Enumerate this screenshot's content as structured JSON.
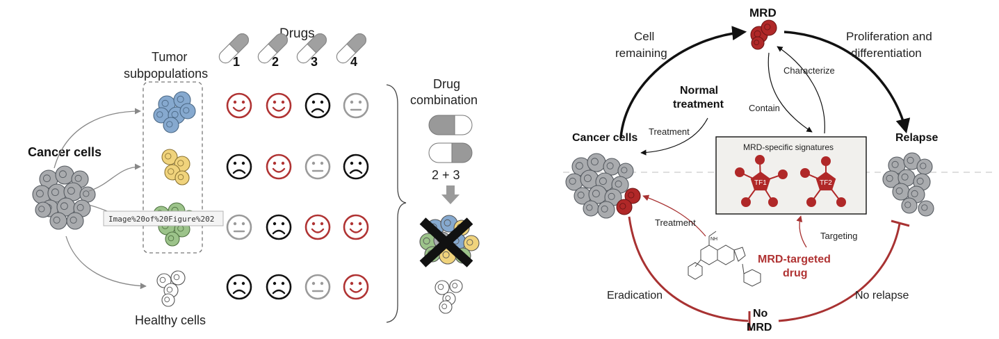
{
  "left_panel": {
    "drugs_title": "Drugs",
    "drug_numbers": [
      "1",
      "2",
      "3",
      "4"
    ],
    "tumor_subpopulations": "Tumor subpopulations",
    "tumor_line1": "Tumor",
    "tumor_line2": "subpopulations",
    "cancer_cells": "Cancer cells",
    "healthy_cells": "Healthy cells",
    "drug_combination_line1": "Drug",
    "drug_combination_line2": "combination",
    "combination_formula": "2 + 3",
    "tooltip": "Image%20of%20Figure%202",
    "response_rows": [
      {
        "population": "blue",
        "responses": [
          "happy",
          "happy",
          "sad",
          "neutral"
        ]
      },
      {
        "population": "yellow",
        "responses": [
          "sad",
          "happy",
          "neutral",
          "sad"
        ]
      },
      {
        "population": "green",
        "responses": [
          "neutral",
          "sad",
          "happy",
          "happy"
        ]
      },
      {
        "population": "healthy",
        "responses": [
          "sad",
          "sad",
          "neutral",
          "happy"
        ]
      }
    ]
  },
  "right_panel": {
    "mrd": "MRD",
    "cell_remaining_line1": "Cell",
    "cell_remaining_line2": "remaining",
    "proliferation_line1": "Proliferation and",
    "proliferation_line2": "differentiation",
    "characterize": "Characterize",
    "contain": "Contain",
    "normal_treatment_line1": "Normal",
    "normal_treatment_line2": "treatment",
    "treatment_top": "Treatment",
    "cancer_cells": "Cancer cells",
    "relapse": "Relapse",
    "signatures_title": "MRD-specific signatures",
    "tf1": "TF1",
    "tf2": "TF2",
    "treatment_bottom": "Treatment",
    "targeting": "Targeting",
    "mrd_drug_line1": "MRD-targeted",
    "mrd_drug_line2": "drug",
    "eradication": "Eradication",
    "no_relapse": "No relapse",
    "no_mrd_line1": "No",
    "no_mrd_line2": "MRD",
    "molecule_label": "NH"
  },
  "colors": {
    "happy": "#b03333",
    "sad": "#111111",
    "neutral": "#9a9a9a",
    "cancer_cell": "#a9abae",
    "cancer_cell_stroke": "#555a60",
    "blue_cell": "#86a9cf",
    "yellow_cell": "#f0d37c",
    "green_cell": "#9cc38a",
    "mrd_red": "#b02828",
    "path_red": "#a83232",
    "dashed": "#cccccc"
  },
  "icons": [
    "pill-icon",
    "happy-face-icon",
    "sad-face-icon",
    "neutral-face-icon",
    "x-mark-icon",
    "down-arrow-icon",
    "molecule-icon",
    "tf-node-icon"
  ]
}
